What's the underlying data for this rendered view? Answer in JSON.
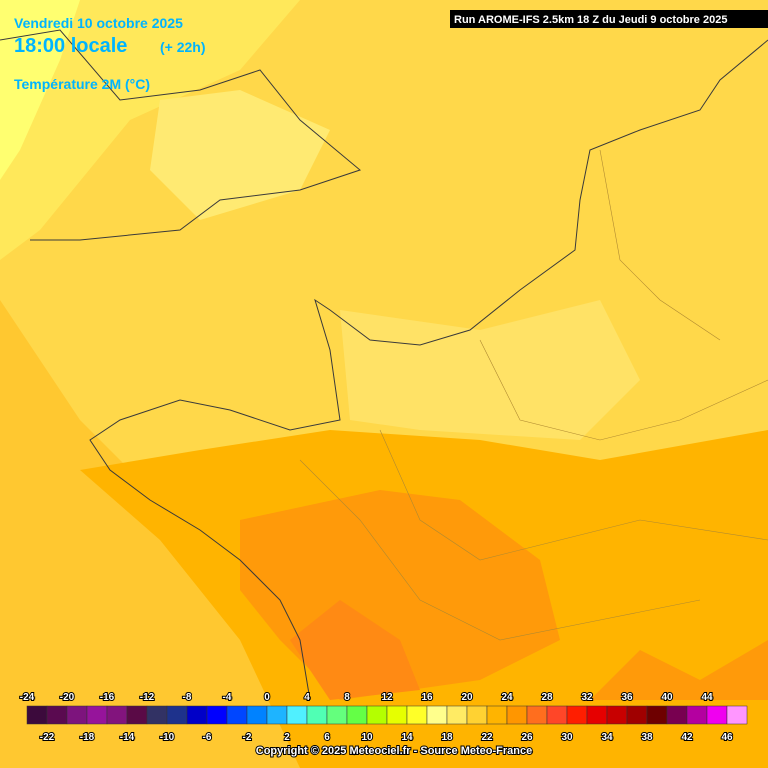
{
  "header": {
    "date": "Vendredi 10 octobre 2025",
    "time": "18:00 locale",
    "offset": "(+ 22h)",
    "parameter": "Température 2M (°C)",
    "run": "Run AROME-IFS 2.5km 18 Z du Jeudi 9 octobre 2025"
  },
  "legend": {
    "items": [
      {
        "value": -24,
        "color": "#3c0a3c"
      },
      {
        "value": -22,
        "color": "#5a0a50"
      },
      {
        "value": -20,
        "color": "#7d147d"
      },
      {
        "value": -18,
        "color": "#96149b"
      },
      {
        "value": -16,
        "color": "#82147d"
      },
      {
        "value": -14,
        "color": "#5a0a46"
      },
      {
        "value": -12,
        "color": "#323264"
      },
      {
        "value": -10,
        "color": "#1e328c"
      },
      {
        "value": -8,
        "color": "#0000c8"
      },
      {
        "value": -6,
        "color": "#0000ff"
      },
      {
        "value": -4,
        "color": "#0046ff"
      },
      {
        "value": -2,
        "color": "#0082ff"
      },
      {
        "value": 0,
        "color": "#1eb4ff"
      },
      {
        "value": 2,
        "color": "#50f0ff"
      },
      {
        "value": 4,
        "color": "#50ffb4"
      },
      {
        "value": 6,
        "color": "#64ff7d"
      },
      {
        "value": 8,
        "color": "#64ff46"
      },
      {
        "value": 10,
        "color": "#b4ff00"
      },
      {
        "value": 12,
        "color": "#e6ff00"
      },
      {
        "value": 14,
        "color": "#ffff28"
      },
      {
        "value": 16,
        "color": "#ffff8c"
      },
      {
        "value": 18,
        "color": "#ffeb64"
      },
      {
        "value": 20,
        "color": "#ffd232"
      },
      {
        "value": 22,
        "color": "#ffb400"
      },
      {
        "value": 24,
        "color": "#ff9600"
      },
      {
        "value": 26,
        "color": "#ff6e1e"
      },
      {
        "value": 28,
        "color": "#ff4628"
      },
      {
        "value": 30,
        "color": "#ff1e00"
      },
      {
        "value": 32,
        "color": "#e60000"
      },
      {
        "value": 34,
        "color": "#c80000"
      },
      {
        "value": 36,
        "color": "#a00000"
      },
      {
        "value": 38,
        "color": "#6e0000"
      },
      {
        "value": 40,
        "color": "#780050"
      },
      {
        "value": 42,
        "color": "#b400a0"
      },
      {
        "value": 44,
        "color": "#f000f0"
      },
      {
        "value": 46,
        "color": "#ff96ff"
      }
    ]
  },
  "footer": {
    "copyright": "Copyright © 2025 Meteociel.fr - Source Meteo-France"
  }
}
